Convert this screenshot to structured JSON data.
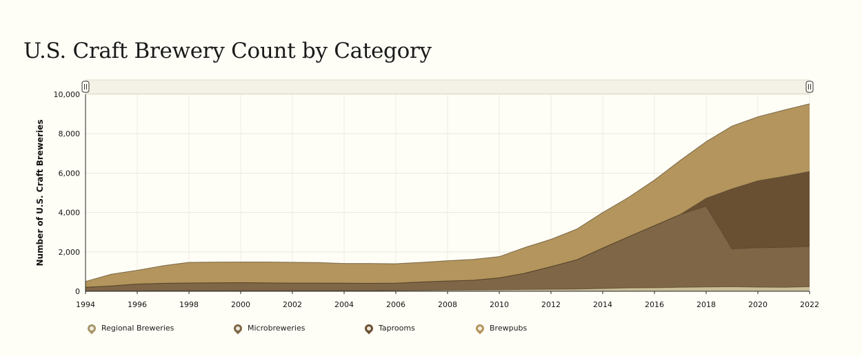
{
  "page": {
    "title": "U.S. Craft Brewery Count by Category"
  },
  "chart_data": {
    "type": "area",
    "stacking": "stacked",
    "ylabel": "Number of U.S. Craft Breweries",
    "xlabel": "",
    "ylim": [
      0,
      10000
    ],
    "yticks": [
      0,
      2000,
      4000,
      6000,
      8000,
      10000
    ],
    "ytick_labels": [
      "0",
      "2,000",
      "4,000",
      "6,000",
      "8,000",
      "10,000"
    ],
    "xlim": [
      1994,
      2022
    ],
    "xticks": [
      1994,
      1996,
      1998,
      2000,
      2002,
      2004,
      2006,
      2008,
      2010,
      2012,
      2014,
      2016,
      2018,
      2020,
      2022
    ],
    "grid": true,
    "legend_position": "bottom",
    "range_selector": true,
    "x": [
      1994,
      1995,
      1996,
      1997,
      1998,
      1999,
      2000,
      2001,
      2002,
      2003,
      2004,
      2005,
      2006,
      2007,
      2008,
      2009,
      2010,
      2011,
      2012,
      2013,
      2014,
      2015,
      2016,
      2017,
      2018,
      2019,
      2020,
      2021,
      2022
    ],
    "series": [
      {
        "name": "Regional Breweries",
        "color": "#c9bd98",
        "values": [
          10,
          10,
          15,
          20,
          20,
          20,
          25,
          25,
          25,
          30,
          30,
          30,
          40,
          50,
          60,
          70,
          80,
          90,
          100,
          110,
          140,
          170,
          180,
          200,
          220,
          230,
          210,
          200,
          230
        ]
      },
      {
        "name": "Microbreweries",
        "color": "#7e6647",
        "values": [
          190,
          260,
          350,
          380,
          400,
          410,
          410,
          400,
          390,
          380,
          380,
          370,
          370,
          420,
          460,
          490,
          600,
          830,
          1150,
          1490,
          2050,
          2600,
          3150,
          3700,
          4100,
          1920,
          2000,
          2030,
          2050
        ]
      },
      {
        "name": "Taprooms",
        "color": "#6a5033",
        "values": [
          0,
          0,
          0,
          0,
          0,
          0,
          0,
          0,
          0,
          0,
          0,
          0,
          0,
          0,
          0,
          0,
          0,
          0,
          0,
          0,
          0,
          0,
          0,
          0,
          400,
          3050,
          3400,
          3600,
          3800
        ]
      },
      {
        "name": "Brewpubs",
        "color": "#b3955d",
        "values": [
          300,
          600,
          700,
          900,
          1050,
          1050,
          1050,
          1060,
          1060,
          1050,
          1000,
          1010,
          990,
          1000,
          1030,
          1060,
          1080,
          1310,
          1390,
          1560,
          1810,
          2000,
          2320,
          2750,
          2880,
          3190,
          3250,
          3370,
          3440
        ]
      }
    ]
  }
}
